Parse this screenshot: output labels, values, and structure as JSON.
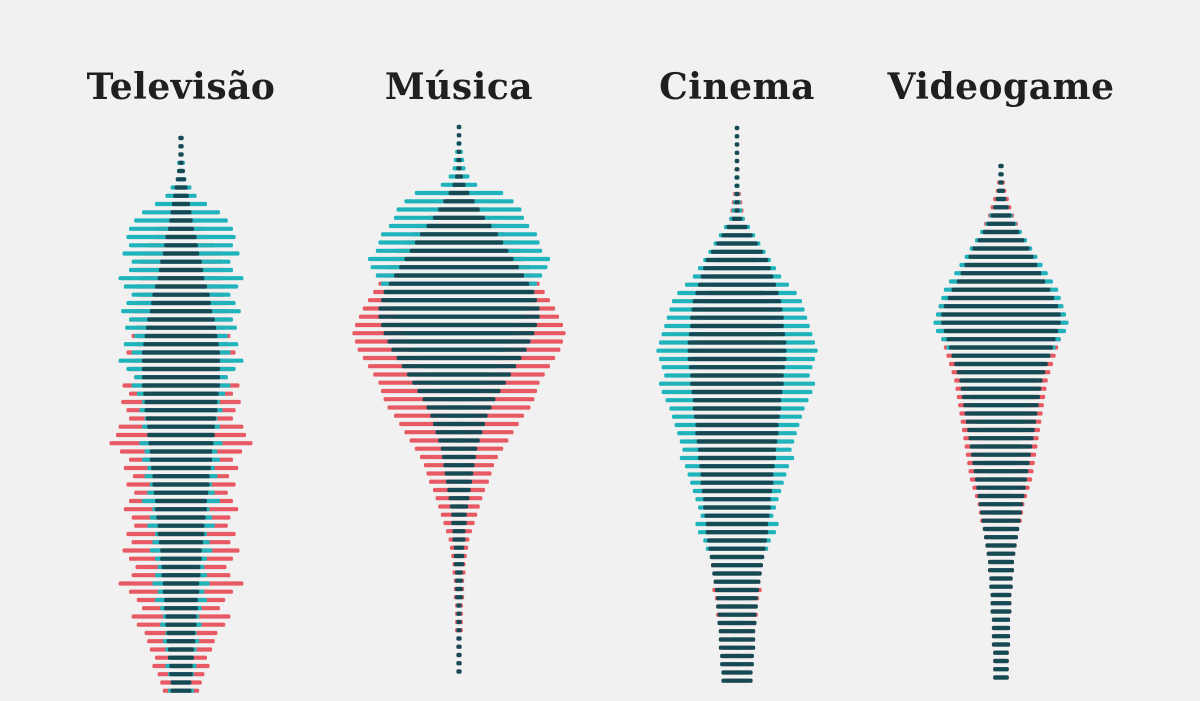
{
  "chart_data": {
    "type": "bar",
    "categories": [
      "Televisão",
      "Música",
      "Cinema",
      "Videogame"
    ],
    "series": [
      {
        "color": "#e85a63",
        "values_by_category": [
          [
            0.02,
            0.02,
            0.02,
            0.02,
            0.02,
            0.02,
            0.04,
            0.06,
            0.05,
            0.09,
            0.12,
            0.18,
            0.22,
            0.26,
            0.3,
            0.32,
            0.35,
            0.32,
            0.36,
            0.33,
            0.35,
            0.38,
            0.4,
            0.34,
            0.38,
            0.36,
            0.42,
            0.38,
            0.4,
            0.36,
            0.45,
            0.4,
            0.46,
            0.42,
            0.4,
            0.48,
            0.5,
            0.55,
            0.47,
            0.4,
            0.44,
            0.37,
            0.42,
            0.36,
            0.4,
            0.44,
            0.38,
            0.36,
            0.42,
            0.38,
            0.45,
            0.4,
            0.35,
            0.38,
            0.48,
            0.4,
            0.34,
            0.3,
            0.38,
            0.34,
            0.28,
            0.26,
            0.24,
            0.2,
            0.22,
            0.18,
            0.16,
            0.14
          ],
          [
            0.01,
            0.01,
            0.01,
            0.02,
            0.02,
            0.03,
            0.04,
            0.06,
            0.1,
            0.14,
            0.18,
            0.24,
            0.3,
            0.36,
            0.42,
            0.48,
            0.52,
            0.55,
            0.58,
            0.62,
            0.66,
            0.7,
            0.74,
            0.77,
            0.8,
            0.82,
            0.8,
            0.78,
            0.74,
            0.7,
            0.66,
            0.62,
            0.6,
            0.58,
            0.55,
            0.5,
            0.46,
            0.42,
            0.38,
            0.34,
            0.3,
            0.27,
            0.25,
            0.23,
            0.2,
            0.18,
            0.16,
            0.14,
            0.12,
            0.1,
            0.08,
            0.07,
            0.06,
            0.05,
            0.05,
            0.04,
            0.04,
            0.04,
            0.03,
            0.03,
            0.03,
            0.03,
            0.02,
            0.02,
            0.02,
            0.02,
            0.02
          ],
          [
            0.01,
            0.01,
            0.01,
            0.01,
            0.01,
            0.02,
            0.02,
            0.02,
            0.03,
            0.04,
            0.05,
            0.06,
            0.08,
            0.1,
            0.12,
            0.14,
            0.16,
            0.18,
            0.2,
            0.21,
            0.22,
            0.24,
            0.26,
            0.27,
            0.29,
            0.3,
            0.32,
            0.34,
            0.34,
            0.33,
            0.32,
            0.34,
            0.35,
            0.33,
            0.34,
            0.32,
            0.31,
            0.33,
            0.34,
            0.32,
            0.3,
            0.28,
            0.3,
            0.29,
            0.3,
            0.28,
            0.27,
            0.26,
            0.25,
            0.24,
            0.22,
            0.21,
            0.2,
            0.2,
            0.19,
            0.18,
            0.19,
            0.17,
            0.16,
            0.16,
            0.15,
            0.14,
            0.14,
            0.12,
            0.12,
            0.11,
            0.1,
            0.1
          ],
          [
            0.02,
            0.02,
            0.03,
            0.04,
            0.06,
            0.08,
            0.1,
            0.13,
            0.16,
            0.2,
            0.24,
            0.27,
            0.3,
            0.33,
            0.36,
            0.4,
            0.44,
            0.48,
            0.5,
            0.5,
            0.48,
            0.46,
            0.44,
            0.42,
            0.4,
            0.38,
            0.36,
            0.35,
            0.34,
            0.33,
            0.32,
            0.31,
            0.3,
            0.29,
            0.28,
            0.27,
            0.26,
            0.25,
            0.24,
            0.22,
            0.2,
            0.18,
            0.17,
            0.16,
            0.14,
            0.13,
            0.12,
            0.11,
            0.1,
            0.1,
            0.09,
            0.09,
            0.08,
            0.08,
            0.08,
            0.07,
            0.07,
            0.07,
            0.07,
            0.06,
            0.06,
            0.06,
            0.06
          ]
        ]
      },
      {
        "color": "#1fb4bb",
        "values_by_category": [
          [
            0.02,
            0.02,
            0.02,
            0.03,
            0.03,
            0.04,
            0.08,
            0.12,
            0.2,
            0.3,
            0.36,
            0.4,
            0.42,
            0.4,
            0.45,
            0.38,
            0.4,
            0.48,
            0.44,
            0.38,
            0.42,
            0.46,
            0.4,
            0.43,
            0.36,
            0.44,
            0.38,
            0.48,
            0.42,
            0.36,
            0.38,
            0.34,
            0.3,
            0.32,
            0.28,
            0.3,
            0.26,
            0.32,
            0.28,
            0.3,
            0.26,
            0.28,
            0.24,
            0.26,
            0.3,
            0.22,
            0.24,
            0.26,
            0.2,
            0.22,
            0.24,
            0.2,
            0.18,
            0.2,
            0.22,
            0.18,
            0.2,
            0.16,
            0.14,
            0.16,
            0.12,
            0.14,
            0.12,
            0.1,
            0.12,
            0.1,
            0.08,
            0.1
          ],
          [
            0.01,
            0.01,
            0.02,
            0.03,
            0.04,
            0.05,
            0.08,
            0.14,
            0.34,
            0.42,
            0.48,
            0.5,
            0.54,
            0.6,
            0.62,
            0.64,
            0.7,
            0.68,
            0.64,
            0.6,
            0.58,
            0.56,
            0.54,
            0.5,
            0.46,
            0.42,
            0.4,
            0.36,
            0.32,
            0.28,
            0.24,
            0.2,
            0.16,
            0.12,
            0.1,
            0.08,
            0.06,
            0.05,
            0.04,
            0.04,
            0.03,
            0.03,
            0.02,
            0.02,
            0.02,
            0.02,
            0.02,
            0.02,
            0.02,
            0.02,
            0.02,
            0.01,
            0.01,
            0.01,
            0.01,
            0.01,
            0.01,
            0.01,
            0.01,
            0.01,
            0.01,
            0.01,
            0.01,
            0.01,
            0.01,
            0.01,
            0.01
          ],
          [
            0.01,
            0.01,
            0.01,
            0.01,
            0.01,
            0.01,
            0.02,
            0.02,
            0.02,
            0.03,
            0.04,
            0.06,
            0.1,
            0.14,
            0.18,
            0.22,
            0.26,
            0.3,
            0.34,
            0.4,
            0.46,
            0.5,
            0.52,
            0.54,
            0.56,
            0.58,
            0.6,
            0.62,
            0.6,
            0.58,
            0.56,
            0.6,
            0.58,
            0.55,
            0.52,
            0.5,
            0.48,
            0.46,
            0.44,
            0.42,
            0.44,
            0.4,
            0.38,
            0.36,
            0.34,
            0.32,
            0.3,
            0.28,
            0.32,
            0.3,
            0.26,
            0.24,
            0.2,
            0.18,
            0.16,
            0.14,
            0.12,
            0.1,
            0.08,
            0.07,
            0.06,
            0.05,
            0.04,
            0.04,
            0.03,
            0.03,
            0.02,
            0.02
          ],
          [
            0.02,
            0.02,
            0.02,
            0.03,
            0.04,
            0.06,
            0.09,
            0.12,
            0.16,
            0.2,
            0.24,
            0.28,
            0.32,
            0.36,
            0.4,
            0.44,
            0.46,
            0.48,
            0.5,
            0.52,
            0.5,
            0.46,
            0.42,
            0.38,
            0.34,
            0.3,
            0.28,
            0.26,
            0.24,
            0.22,
            0.2,
            0.18,
            0.17,
            0.16,
            0.15,
            0.14,
            0.13,
            0.12,
            0.11,
            0.1,
            0.1,
            0.09,
            0.09,
            0.08,
            0.08,
            0.08,
            0.07,
            0.07,
            0.07,
            0.07,
            0.06,
            0.06,
            0.06,
            0.06,
            0.06,
            0.06,
            0.05,
            0.05,
            0.05,
            0.05,
            0.05,
            0.05,
            0.05
          ]
        ]
      },
      {
        "color": "#154a55",
        "values_by_category": [
          [
            0.02,
            0.02,
            0.02,
            0.02,
            0.03,
            0.04,
            0.05,
            0.06,
            0.07,
            0.08,
            0.09,
            0.1,
            0.12,
            0.13,
            0.14,
            0.16,
            0.17,
            0.18,
            0.2,
            0.22,
            0.23,
            0.24,
            0.26,
            0.27,
            0.28,
            0.29,
            0.3,
            0.3,
            0.3,
            0.3,
            0.3,
            0.29,
            0.28,
            0.28,
            0.27,
            0.26,
            0.26,
            0.25,
            0.24,
            0.24,
            0.23,
            0.22,
            0.22,
            0.21,
            0.2,
            0.2,
            0.19,
            0.18,
            0.18,
            0.17,
            0.16,
            0.16,
            0.15,
            0.15,
            0.14,
            0.14,
            0.13,
            0.13,
            0.12,
            0.12,
            0.11,
            0.11,
            0.1,
            0.1,
            0.09,
            0.09,
            0.08,
            0.08
          ],
          [
            0.01,
            0.01,
            0.01,
            0.01,
            0.02,
            0.02,
            0.03,
            0.05,
            0.08,
            0.12,
            0.16,
            0.2,
            0.25,
            0.3,
            0.34,
            0.38,
            0.42,
            0.46,
            0.5,
            0.54,
            0.58,
            0.6,
            0.62,
            0.62,
            0.6,
            0.58,
            0.55,
            0.52,
            0.48,
            0.44,
            0.4,
            0.36,
            0.32,
            0.28,
            0.25,
            0.22,
            0.2,
            0.18,
            0.16,
            0.14,
            0.13,
            0.12,
            0.11,
            0.1,
            0.09,
            0.08,
            0.07,
            0.06,
            0.06,
            0.05,
            0.05,
            0.04,
            0.04,
            0.04,
            0.03,
            0.03,
            0.03,
            0.03,
            0.02,
            0.02,
            0.02,
            0.02,
            0.02,
            0.02,
            0.02,
            0.02,
            0.02
          ],
          [
            0.01,
            0.01,
            0.01,
            0.01,
            0.01,
            0.01,
            0.01,
            0.01,
            0.01,
            0.02,
            0.02,
            0.04,
            0.08,
            0.12,
            0.16,
            0.2,
            0.24,
            0.26,
            0.28,
            0.3,
            0.32,
            0.34,
            0.35,
            0.36,
            0.36,
            0.37,
            0.38,
            0.38,
            0.38,
            0.37,
            0.36,
            0.36,
            0.35,
            0.34,
            0.34,
            0.33,
            0.32,
            0.32,
            0.31,
            0.3,
            0.3,
            0.29,
            0.28,
            0.28,
            0.27,
            0.26,
            0.26,
            0.25,
            0.24,
            0.24,
            0.23,
            0.22,
            0.21,
            0.2,
            0.19,
            0.18,
            0.17,
            0.16,
            0.16,
            0.15,
            0.15,
            0.14,
            0.14,
            0.14,
            0.13,
            0.13,
            0.12,
            0.12
          ],
          [
            0.02,
            0.02,
            0.02,
            0.03,
            0.04,
            0.06,
            0.08,
            0.11,
            0.14,
            0.18,
            0.22,
            0.25,
            0.28,
            0.31,
            0.34,
            0.38,
            0.41,
            0.44,
            0.46,
            0.46,
            0.44,
            0.42,
            0.4,
            0.38,
            0.36,
            0.34,
            0.32,
            0.31,
            0.3,
            0.29,
            0.28,
            0.27,
            0.26,
            0.25,
            0.24,
            0.23,
            0.22,
            0.21,
            0.2,
            0.19,
            0.18,
            0.17,
            0.16,
            0.15,
            0.14,
            0.13,
            0.12,
            0.11,
            0.1,
            0.1,
            0.09,
            0.09,
            0.08,
            0.08,
            0.08,
            0.07,
            0.07,
            0.07,
            0.07,
            0.06,
            0.06,
            0.06,
            0.06
          ]
        ]
      }
    ],
    "title": "",
    "xlabel": "",
    "ylabel": "",
    "grid": false,
    "legend": "none"
  }
}
